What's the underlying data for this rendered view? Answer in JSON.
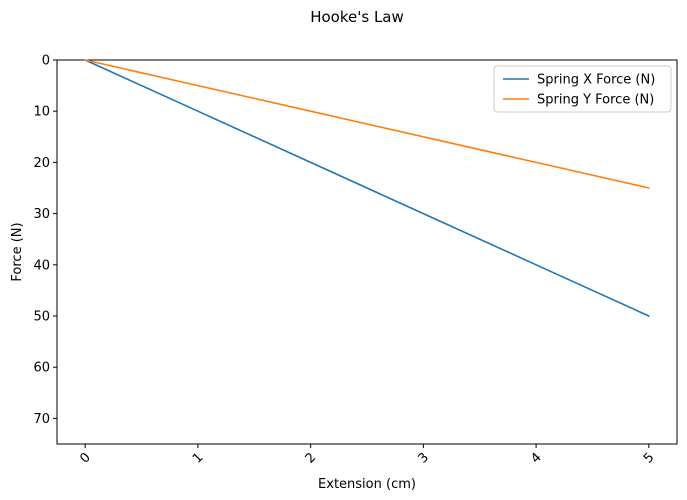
{
  "chart_data": {
    "type": "line",
    "title": "Hooke's Law",
    "xlabel": "Extension (cm)",
    "ylabel": "Force (N)",
    "x": [
      0,
      1,
      2,
      3,
      4,
      5
    ],
    "series": [
      {
        "name": "Spring X Force (N)",
        "values": [
          0,
          10,
          20,
          30,
          40,
          50
        ],
        "color": "#1f77b4"
      },
      {
        "name": "Spring Y Force (N)",
        "values": [
          0,
          5,
          10,
          15,
          20,
          25
        ],
        "color": "#ff7f0e"
      }
    ],
    "xlim": [
      -0.25,
      5.25
    ],
    "ylim": [
      75,
      0
    ],
    "y_inverted": true,
    "xticks": [
      "0",
      "1",
      "2",
      "3",
      "4",
      "5"
    ],
    "xtick_rotation_deg": 45,
    "yticks": [
      "0",
      "10",
      "20",
      "30",
      "40",
      "50",
      "60",
      "70"
    ],
    "grid": false,
    "legend_position": "top-right"
  }
}
